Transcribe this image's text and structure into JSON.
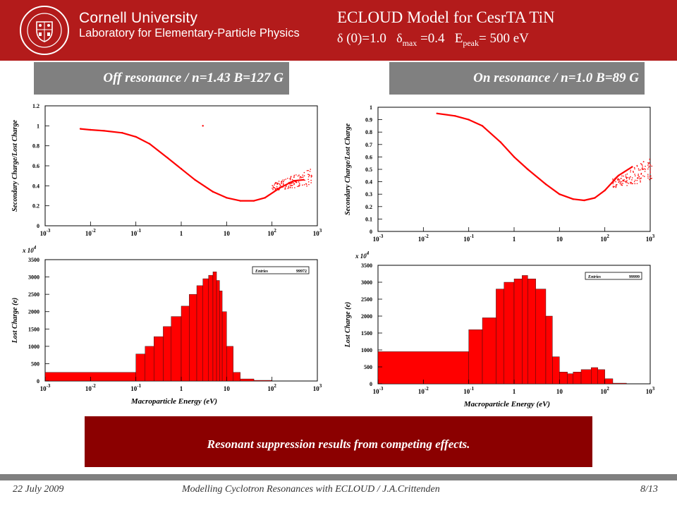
{
  "header": {
    "university": "Cornell University",
    "laboratory": "Laboratory for Elementary-Particle Physics",
    "seal_text": "CORNELL UNIVERSITY FOUNDED A.D. 1865",
    "title": "ECLOUD Model for CesrTA TiN",
    "sub_param1": "(0)=1.0",
    "sub_param2_sub": "max",
    "sub_param2_val": "=0.4",
    "sub_param3_main": "E",
    "sub_param3_sub": "peak",
    "sub_param3_val": "= 500 eV"
  },
  "panels": {
    "left_banner": "Off resonance / n=1.43 B=127 G",
    "right_banner": "On resonance / n=1.0 B=89 G"
  },
  "conclusion": "Resonant suppression results from competing effects.",
  "footer": {
    "date": "22 July 2009",
    "center": "Modelling Cyclotron Resonances with ECLOUD / J.A.Crittenden",
    "page": "8/13"
  },
  "colors": {
    "header_bg": "#b31b1b",
    "banner_bg": "#808080",
    "conclusion_bg": "#8b0000",
    "data": "#ff0000"
  },
  "chart_data": [
    {
      "type": "scatter",
      "panel": "left-top",
      "xlabel": "",
      "ylabel": "Secondary Charge/Lost Charge",
      "xscale": "log",
      "xlim": [
        0.001,
        1000
      ],
      "ylim": [
        0,
        1.2
      ],
      "yticks": [
        "0",
        "0.2",
        "0.4",
        "0.6",
        "0.8",
        "1",
        "1.2"
      ],
      "xticks": [
        "10-3",
        "10-2",
        "10-1",
        "1",
        "10",
        "102",
        "103"
      ],
      "x": [
        0.006,
        0.01,
        0.02,
        0.05,
        0.1,
        0.2,
        0.5,
        1,
        2,
        5,
        10,
        20,
        40,
        70,
        150,
        300,
        500
      ],
      "y": [
        0.97,
        0.96,
        0.95,
        0.93,
        0.89,
        0.82,
        0.68,
        0.57,
        0.46,
        0.34,
        0.28,
        0.25,
        0.25,
        0.28,
        0.38,
        0.45,
        0.46
      ],
      "outlier": {
        "x": 3,
        "y": 1.0
      },
      "scatter_band": {
        "xmin": 100,
        "xmax": 800,
        "ymin": 0.35,
        "ymax": 0.58
      }
    },
    {
      "type": "bar",
      "panel": "left-bottom",
      "xlabel": "Macroparticle Energy (eV)",
      "ylabel": "Lost Charge (e)",
      "multiplier": "x 10",
      "multiplier_exp": "4",
      "legend_label": "Entries",
      "entries": "99972",
      "xscale": "log",
      "xlim": [
        0.001,
        1000
      ],
      "ylim": [
        0,
        3500
      ],
      "yticks": [
        "0",
        "500",
        "1000",
        "1500",
        "2000",
        "2500",
        "3000",
        "3500"
      ],
      "xticks": [
        "10-3",
        "10-2",
        "10-1",
        "1",
        "10",
        "102",
        "103"
      ],
      "edges": [
        0.001,
        0.1,
        0.16,
        0.25,
        0.4,
        0.6,
        1,
        1.5,
        2.2,
        3,
        4,
        5,
        6,
        7,
        8,
        10,
        14,
        20,
        40,
        100
      ],
      "values": [
        250,
        780,
        1000,
        1280,
        1570,
        1860,
        2160,
        2500,
        2750,
        2950,
        3050,
        3150,
        2900,
        2600,
        2000,
        1000,
        250,
        60,
        20
      ]
    },
    {
      "type": "scatter",
      "panel": "right-top",
      "xlabel": "",
      "ylabel": "Secondary Charge/Lost Charge",
      "xscale": "log",
      "xlim": [
        0.001,
        1000
      ],
      "ylim": [
        0,
        1
      ],
      "yticks": [
        "0",
        "0.1",
        "0.2",
        "0.3",
        "0.4",
        "0.5",
        "0.6",
        "0.7",
        "0.8",
        "0.9",
        "1"
      ],
      "xticks": [
        "10-3",
        "10-2",
        "10-1",
        "1",
        "10",
        "102",
        "103"
      ],
      "x": [
        0.02,
        0.05,
        0.1,
        0.2,
        0.5,
        1,
        2,
        5,
        10,
        20,
        35,
        60,
        100,
        200,
        400
      ],
      "y": [
        0.95,
        0.93,
        0.9,
        0.85,
        0.72,
        0.6,
        0.5,
        0.38,
        0.3,
        0.26,
        0.25,
        0.27,
        0.33,
        0.45,
        0.52
      ],
      "scatter_band": {
        "xmin": 150,
        "xmax": 1100,
        "ymin": 0.35,
        "ymax": 0.6
      }
    },
    {
      "type": "bar",
      "panel": "right-bottom",
      "xlabel": "Macroparticle Energy (eV)",
      "ylabel": "Lost Charge (e)",
      "multiplier": "x 10",
      "multiplier_exp": "4",
      "legend_label": "Entries",
      "entries": "99999",
      "xscale": "log",
      "xlim": [
        0.001,
        1000
      ],
      "ylim": [
        0,
        3500
      ],
      "yticks": [
        "0",
        "500",
        "1000",
        "1500",
        "2000",
        "2500",
        "3000",
        "3500"
      ],
      "xticks": [
        "10-3",
        "10-2",
        "10-1",
        "1",
        "10",
        "102",
        "103"
      ],
      "edges": [
        0.001,
        0.1,
        0.2,
        0.4,
        0.6,
        1,
        1.5,
        2,
        3,
        5,
        7,
        10,
        15,
        20,
        30,
        50,
        70,
        100,
        150,
        300
      ],
      "values": [
        950,
        1600,
        1950,
        2800,
        3000,
        3100,
        3200,
        3100,
        2800,
        2000,
        800,
        350,
        300,
        350,
        420,
        480,
        420,
        150,
        20
      ]
    }
  ]
}
